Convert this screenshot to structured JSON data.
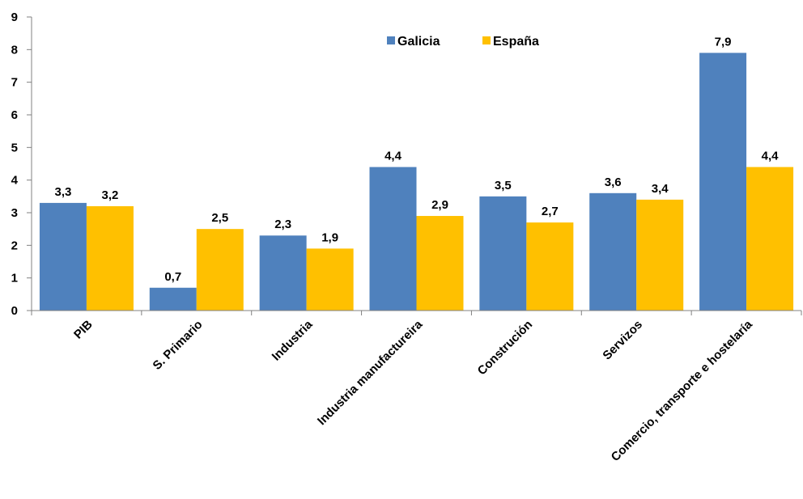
{
  "chart_data": {
    "type": "bar",
    "categories": [
      "PIB",
      "S. Primario",
      "Industria",
      "Industria manufactureira",
      "Construción",
      "Servizos",
      "Comercio, transporte e hostelaría"
    ],
    "series": [
      {
        "name": "Galicia",
        "color": "#4F81BD",
        "values": [
          3.3,
          0.7,
          2.3,
          4.4,
          3.5,
          3.6,
          7.9
        ],
        "labels": [
          "3,3",
          "0,7",
          "2,3",
          "4,4",
          "3,5",
          "3,6",
          "7,9"
        ]
      },
      {
        "name": "España",
        "color": "#FFC000",
        "values": [
          3.2,
          2.5,
          1.9,
          2.9,
          2.7,
          3.4,
          4.4
        ],
        "labels": [
          "3,2",
          "2,5",
          "1,9",
          "2,9",
          "2,7",
          "3,4",
          "4,4"
        ]
      }
    ],
    "yticks": [
      0,
      1,
      2,
      3,
      4,
      5,
      6,
      7,
      8,
      9
    ],
    "ylim": [
      0,
      9
    ],
    "grid": false,
    "legend_position": "top-center"
  }
}
